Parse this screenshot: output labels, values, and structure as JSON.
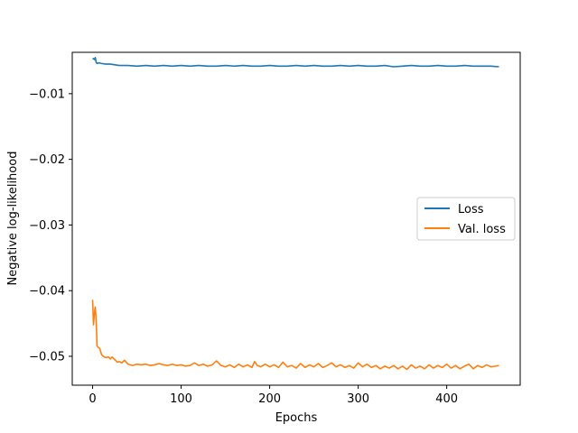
{
  "chart_data": {
    "type": "line",
    "title": "",
    "xlabel": "Epochs",
    "ylabel": "Negative log-likelihood",
    "xlim": [
      -23,
      483
    ],
    "ylim": [
      -0.0544,
      -0.0037
    ],
    "xticks": [
      0,
      100,
      200,
      300,
      400
    ],
    "yticks": [
      -0.05,
      -0.04,
      -0.03,
      -0.02,
      -0.01
    ],
    "ytick_labels": [
      "−0.05",
      "−0.04",
      "−0.03",
      "−0.02",
      "−0.01"
    ],
    "grid": false,
    "legend_position": "center-right",
    "series": [
      {
        "name": "Loss",
        "color": "#1f77b4",
        "x": [
          0,
          1,
          2,
          3,
          4,
          5,
          7,
          10,
          15,
          20,
          25,
          30,
          40,
          50,
          60,
          70,
          80,
          90,
          100,
          110,
          120,
          130,
          140,
          150,
          160,
          170,
          180,
          190,
          200,
          210,
          220,
          230,
          240,
          250,
          260,
          270,
          280,
          290,
          300,
          310,
          320,
          330,
          340,
          350,
          360,
          370,
          380,
          390,
          400,
          410,
          420,
          430,
          440,
          450,
          459
        ],
        "values": [
          -0.0046,
          -0.0047,
          -0.0048,
          -0.0045,
          -0.0052,
          -0.0054,
          -0.0053,
          -0.0054,
          -0.0055,
          -0.0055,
          -0.0056,
          -0.0057,
          -0.0057,
          -0.0058,
          -0.0057,
          -0.0058,
          -0.0057,
          -0.0058,
          -0.0057,
          -0.0058,
          -0.0057,
          -0.0058,
          -0.0058,
          -0.0057,
          -0.0058,
          -0.0057,
          -0.0058,
          -0.0058,
          -0.0057,
          -0.0058,
          -0.0058,
          -0.0057,
          -0.0058,
          -0.0057,
          -0.0058,
          -0.0058,
          -0.0057,
          -0.0058,
          -0.0057,
          -0.0058,
          -0.0058,
          -0.0057,
          -0.0059,
          -0.0058,
          -0.0057,
          -0.0058,
          -0.0058,
          -0.0057,
          -0.0058,
          -0.0058,
          -0.0057,
          -0.0058,
          -0.0058,
          -0.0058,
          -0.0059
        ]
      },
      {
        "name": "Val. loss",
        "color": "#ff7f0e",
        "x": [
          0,
          1,
          2,
          3,
          4,
          5,
          6,
          8,
          10,
          12,
          15,
          18,
          20,
          22,
          25,
          28,
          30,
          33,
          36,
          40,
          45,
          50,
          55,
          60,
          65,
          70,
          75,
          80,
          85,
          90,
          95,
          100,
          105,
          110,
          115,
          120,
          125,
          130,
          135,
          140,
          145,
          150,
          155,
          160,
          165,
          170,
          175,
          180,
          183,
          186,
          190,
          195,
          200,
          205,
          210,
          215,
          220,
          225,
          230,
          235,
          240,
          245,
          250,
          255,
          260,
          265,
          270,
          275,
          280,
          285,
          290,
          295,
          300,
          305,
          310,
          315,
          320,
          325,
          330,
          335,
          340,
          345,
          350,
          355,
          360,
          365,
          370,
          375,
          380,
          385,
          390,
          395,
          400,
          405,
          410,
          415,
          420,
          425,
          430,
          435,
          440,
          445,
          450,
          455,
          459
        ],
        "values": [
          -0.0414,
          -0.0452,
          -0.0435,
          -0.0425,
          -0.0444,
          -0.0484,
          -0.0486,
          -0.0488,
          -0.0497,
          -0.05,
          -0.0502,
          -0.0501,
          -0.0504,
          -0.0501,
          -0.0505,
          -0.0509,
          -0.0508,
          -0.051,
          -0.0506,
          -0.0512,
          -0.0514,
          -0.0512,
          -0.0513,
          -0.0512,
          -0.0514,
          -0.0513,
          -0.0511,
          -0.0513,
          -0.0514,
          -0.0512,
          -0.0514,
          -0.0513,
          -0.0515,
          -0.0514,
          -0.051,
          -0.0514,
          -0.0512,
          -0.0515,
          -0.0513,
          -0.0507,
          -0.0514,
          -0.0516,
          -0.0513,
          -0.0517,
          -0.0512,
          -0.0516,
          -0.0513,
          -0.0517,
          -0.0508,
          -0.0514,
          -0.0516,
          -0.0512,
          -0.0516,
          -0.0513,
          -0.0517,
          -0.0509,
          -0.0516,
          -0.0514,
          -0.0518,
          -0.0511,
          -0.0517,
          -0.0513,
          -0.0516,
          -0.0511,
          -0.0517,
          -0.0514,
          -0.051,
          -0.0516,
          -0.0513,
          -0.0517,
          -0.0514,
          -0.0518,
          -0.051,
          -0.0516,
          -0.0512,
          -0.0517,
          -0.0514,
          -0.0519,
          -0.0515,
          -0.0518,
          -0.0514,
          -0.0519,
          -0.0515,
          -0.052,
          -0.0513,
          -0.0518,
          -0.0515,
          -0.0519,
          -0.0513,
          -0.0518,
          -0.0514,
          -0.0517,
          -0.0512,
          -0.0518,
          -0.0514,
          -0.0519,
          -0.0515,
          -0.0512,
          -0.0519,
          -0.0514,
          -0.0517,
          -0.0513,
          -0.0516,
          -0.0515,
          -0.0514
        ]
      }
    ]
  }
}
